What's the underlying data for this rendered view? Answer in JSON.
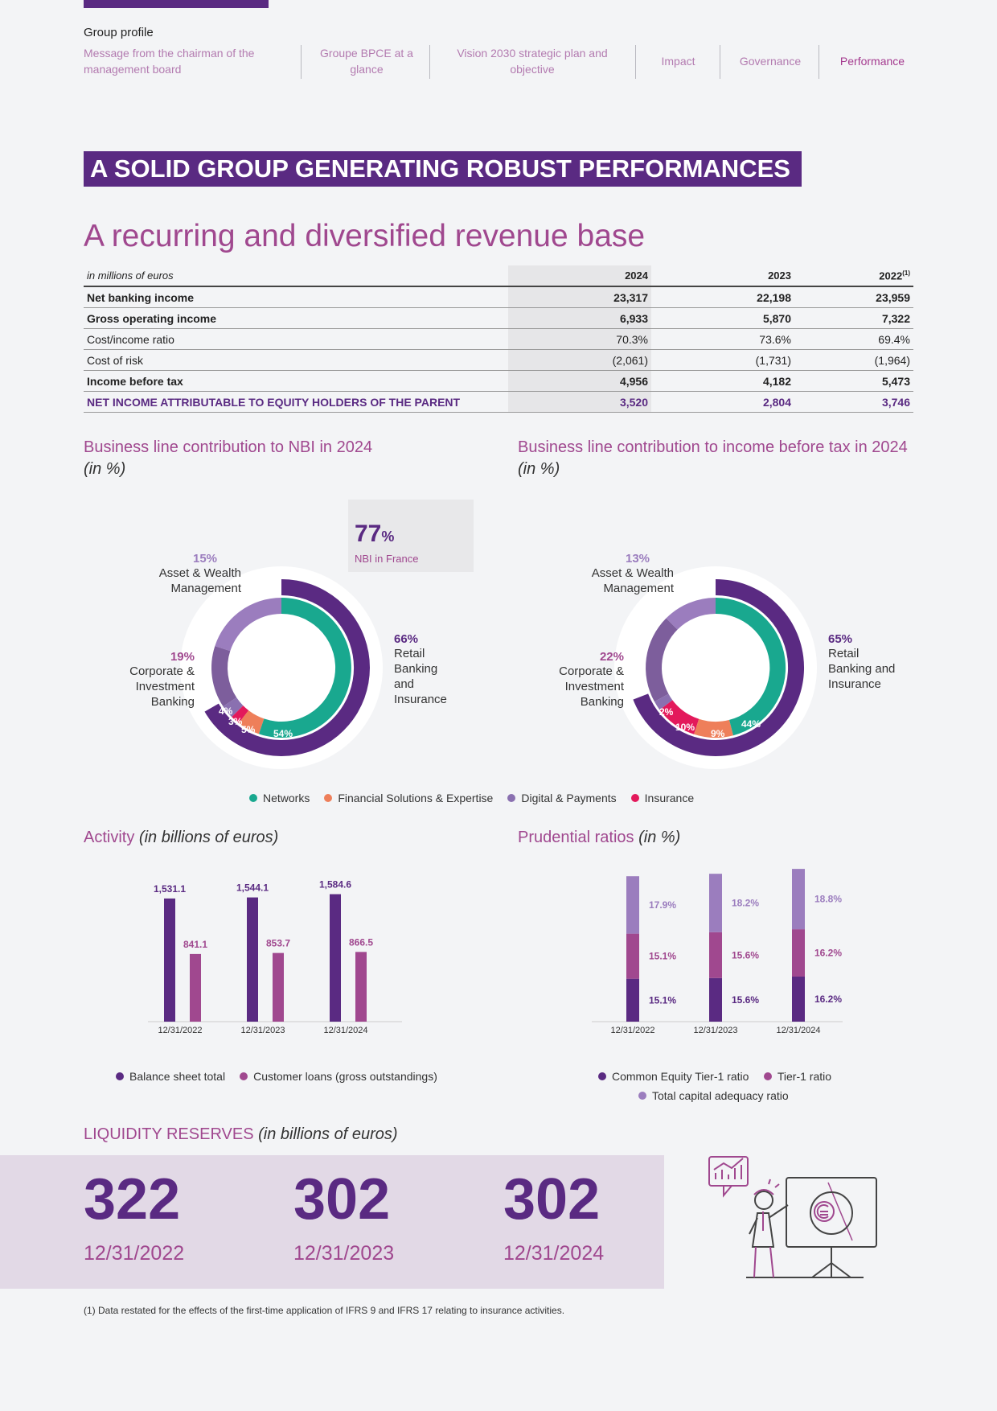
{
  "header": {
    "section": "Group profile",
    "nav": [
      {
        "label": "Message from the chairman of the management board"
      },
      {
        "label": "Groupe BPCE at a glance"
      },
      {
        "label": "Vision 2030 strategic plan and objective"
      },
      {
        "label": "Impact"
      },
      {
        "label": "Governance"
      },
      {
        "label": "Performance",
        "active": true
      }
    ]
  },
  "banner": "A SOLID GROUP GENERATING ROBUST PERFORMANCES",
  "revenue_title": "A recurring and diversified revenue base",
  "table": {
    "unit": "in millions of euros",
    "columns": [
      "2024",
      "2023",
      "2022"
    ],
    "footnote_mark": "(1)",
    "rows": [
      {
        "label": "Net banking income",
        "values": [
          "23,317",
          "22,198",
          "23,959"
        ]
      },
      {
        "label": "Gross operating income",
        "values": [
          "6,933",
          "5,870",
          "7,322"
        ]
      },
      {
        "label": "Cost/income ratio",
        "values": [
          "70.3%",
          "73.6%",
          "69.4%"
        ]
      },
      {
        "label": "Cost of risk",
        "values": [
          "(2,061)",
          "(1,731)",
          "(1,964)"
        ]
      },
      {
        "label": "Income before tax",
        "values": [
          "4,956",
          "4,182",
          "5,473"
        ]
      },
      {
        "label": "NET INCOME ATTRIBUTABLE TO EQUITY HOLDERS OF THE PARENT",
        "values": [
          "3,520",
          "2,804",
          "3,746"
        ]
      }
    ]
  },
  "nbi": {
    "title": "Business line contribution to NBI in 2024",
    "unit": "(in %)",
    "callout_value": "77",
    "callout_unit": "%",
    "callout_label": "NBI in France",
    "awm": {
      "pct": "15%",
      "label": "Asset & Wealth Management"
    },
    "cib": {
      "pct": "19%",
      "label": "Corporate & Investment Banking"
    },
    "rbi": {
      "pct": "66%",
      "label": "Retail Banking and Insurance"
    },
    "inner": {
      "networks": "54%",
      "fse": "5%",
      "insurance": "3%",
      "digital": "4%"
    }
  },
  "ibt": {
    "title": "Business line contribution to income before tax in 2024",
    "unit": "(in %)",
    "awm": {
      "pct": "13%",
      "label": "Asset & Wealth Management"
    },
    "cib": {
      "pct": "22%",
      "label": "Corporate & Investment Banking"
    },
    "rbi": {
      "pct": "65%",
      "label": "Retail Banking and Insurance"
    },
    "inner": {
      "networks": "44%",
      "fse": "9%",
      "insurance": "10%",
      "digital": "2%"
    }
  },
  "donut_legend": [
    {
      "label": "Networks",
      "color": "#19a88f"
    },
    {
      "label": "Financial Solutions & Expertise",
      "color": "#ee7f5a"
    },
    {
      "label": "Digital & Payments",
      "color": "#8a70b0"
    },
    {
      "label": "Insurance",
      "color": "#e3195b"
    }
  ],
  "colors": {
    "purple": "#5a2a82",
    "magenta": "#a0488f",
    "lilac": "#9b7dbe"
  },
  "activity": {
    "title": "Activity",
    "unit": "(in billions of euros)",
    "legend": [
      "Balance sheet total",
      "Customer loans (gross outstandings)"
    ]
  },
  "prudential": {
    "title": "Prudential ratios",
    "unit": "(in %)",
    "legend": [
      "Common Equity Tier-1 ratio",
      "Tier-1 ratio",
      "Total capital adequacy ratio"
    ]
  },
  "chart_data": [
    {
      "type": "bar",
      "categories": [
        "12/31/2022",
        "12/31/2023",
        "12/31/2024"
      ],
      "series": [
        {
          "name": "Balance sheet total",
          "values": [
            1531.1,
            1544.1,
            1584.6
          ],
          "labels": [
            "1,531.1",
            "1,544.1",
            "1,584.6"
          ]
        },
        {
          "name": "Customer loans (gross outstandings)",
          "values": [
            841.1,
            853.7,
            866.5
          ],
          "labels": [
            "841.1",
            "853.7",
            "866.5"
          ]
        }
      ]
    },
    {
      "type": "bar",
      "categories": [
        "12/31/2022",
        "12/31/2023",
        "12/31/2024"
      ],
      "series": [
        {
          "name": "Common Equity Tier-1 ratio",
          "values": [
            15.1,
            15.6,
            16.2
          ],
          "labels": [
            "15.1%",
            "15.6%",
            "16.2%"
          ]
        },
        {
          "name": "Tier-1 ratio",
          "values": [
            15.1,
            15.6,
            16.2
          ],
          "labels": [
            "15.1%",
            "15.6%",
            "16.2%"
          ]
        },
        {
          "name": "Total capital adequacy ratio",
          "values": [
            17.9,
            18.2,
            18.8
          ],
          "labels": [
            "17.9%",
            "18.2%",
            "18.8%"
          ]
        }
      ]
    }
  ],
  "liquidity": {
    "title": "LIQUIDITY RESERVES",
    "unit": "(in billions of euros)",
    "items": [
      {
        "value": "322",
        "date": "12/31/2022"
      },
      {
        "value": "302",
        "date": "12/31/2023"
      },
      {
        "value": "302",
        "date": "12/31/2024"
      }
    ]
  },
  "footnote": "(1)   Data restated for the effects of the first-time application of IFRS 9 and IFRS 17 relating to insurance activities."
}
